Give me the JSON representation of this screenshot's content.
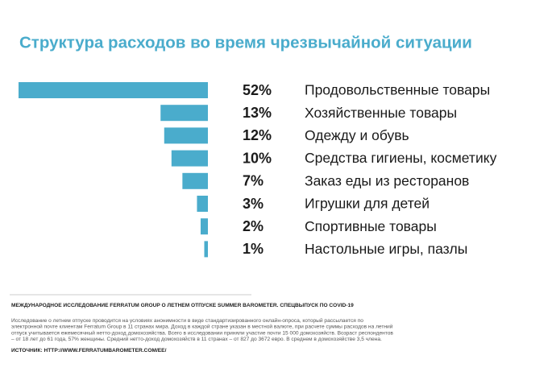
{
  "chart_data": {
    "type": "bar",
    "orientation": "horizontal",
    "title": "Структура расходов во время чрезвычайной ситуации",
    "categories": [
      "Продовольственные товары",
      "Хозяйственные товары",
      "Одежду и обувь",
      "Средства гигиены, косметику",
      "Заказ еды из ресторанов",
      "Игрушки для детей",
      "Спортивные товары",
      "Настольные игры, пазлы"
    ],
    "values": [
      52,
      13,
      12,
      10,
      7,
      3,
      2,
      1
    ],
    "value_labels": [
      "52%",
      "13%",
      "12%",
      "10%",
      "7%",
      "3%",
      "2%",
      "1%"
    ],
    "color": "#4aaccc"
  },
  "footer": {
    "heading": "МЕЖДУНАРОДНОЕ ИССЛЕДОВАНИЕ FERRATUM GROUP О ЛЕТНЕМ ОТПУСКЕ SUMMER BAROMETER. СПЕЦВЫПУСК ПО COVID-19",
    "note": [
      "Исследование о летнем отпуске проводится на условиях анонимности в виде стандартизированного онлайн-опроса, который рассылается по",
      "электронной почте клиентам Ferratum Group в 11 странах мира. Доход в каждой стране указан в местной валюте, при расчете суммы расходов на летний",
      "отпуск учитывается ежемесячный нетто-доход домохозяйства. Всего в исследовании приняли участие почти 15 000 домохозяйств. Возраст респондентов",
      "– от 18 лет до 61 года, 57% женщины. Средний нетто-доход домохозяйств в 11 странах – от 827 до 3672 евро. В среднем в домохозяйстве 3,5 члена."
    ],
    "source": "ИСТОЧНИК: HTTP://WWW.FERRATUMBAROMETER.COM/EE/"
  }
}
